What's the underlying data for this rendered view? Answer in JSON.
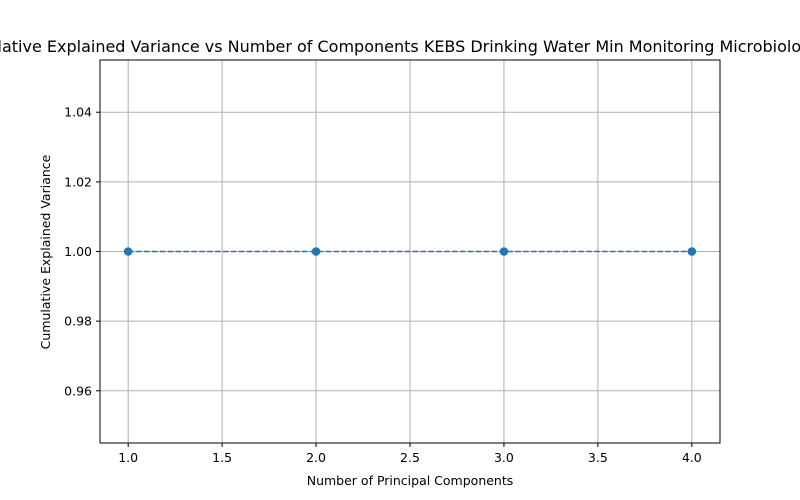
{
  "chart_data": {
    "type": "line",
    "title": "Cumulative Explained Variance vs Number of Components KEBS Drinking Water Min Monitoring Microbiology.pdf",
    "xlabel": "Number of Principal Components",
    "ylabel": "Cumulative Explained Variance",
    "x": [
      1,
      2,
      3,
      4
    ],
    "series": [
      {
        "values": [
          1.0,
          1.0,
          1.0,
          1.0
        ],
        "color": "#1f77b4",
        "line_style": "dashed",
        "marker": "circle"
      }
    ],
    "xlim": [
      0.85,
      4.15
    ],
    "ylim": [
      0.945,
      1.055
    ],
    "xticks": [
      1.0,
      1.5,
      2.0,
      2.5,
      3.0,
      3.5,
      4.0
    ],
    "xtick_labels": [
      "1.0",
      "1.5",
      "2.0",
      "2.5",
      "3.0",
      "3.5",
      "4.0"
    ],
    "yticks": [
      0.96,
      0.98,
      1.0,
      1.02,
      1.04
    ],
    "ytick_labels": [
      "0.96",
      "0.98",
      "1.00",
      "1.02",
      "1.04"
    ],
    "grid": true,
    "legend": "none"
  }
}
